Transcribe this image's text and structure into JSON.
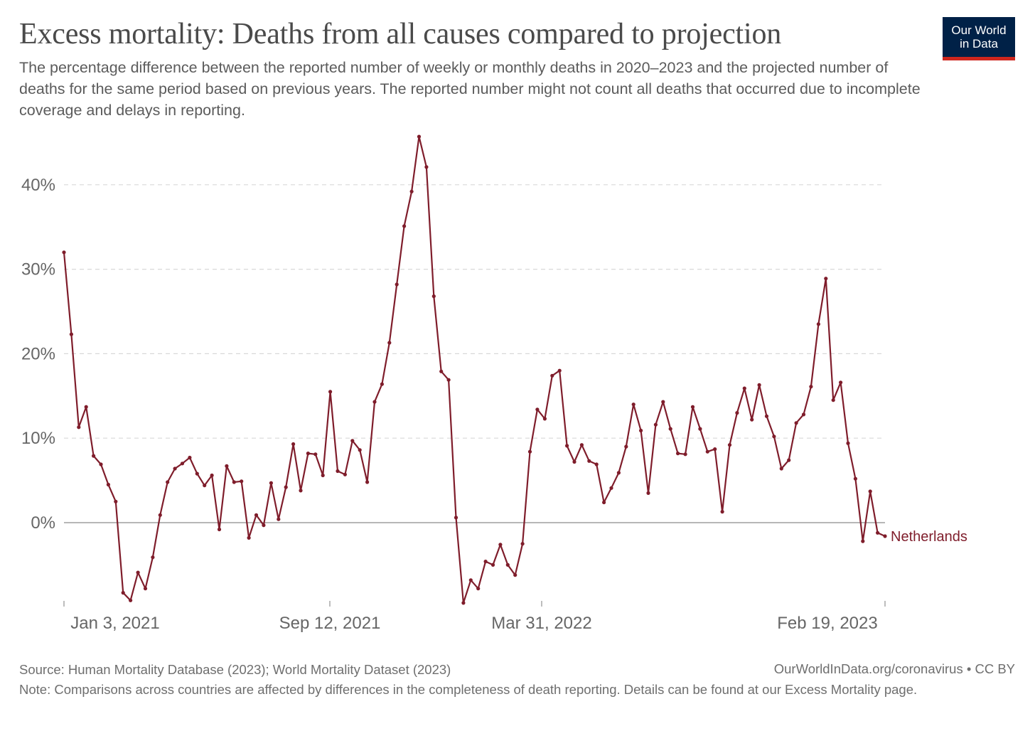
{
  "header": {
    "title": "Excess mortality: Deaths from all causes compared to projection",
    "subtitle": "The percentage difference between the reported number of weekly or monthly deaths in 2020–2023 and the projected number of deaths for the same period based on previous years. The reported number might not count all deaths that occurred due to incomplete coverage and delays in reporting."
  },
  "logo": {
    "line1": "Our World",
    "line2": "in Data",
    "bg_color": "#002147",
    "accent_color": "#ce261e"
  },
  "footer": {
    "source": "Source: Human Mortality Database (2023); World Mortality Dataset (2023)",
    "url": "OurWorldInData.org/coronavirus • CC BY",
    "note": "Note: Comparisons across countries are affected by differences in the completeness of death reporting. Details can be found at our Excess Mortality page."
  },
  "chart_data": {
    "type": "line",
    "title": "Excess mortality: Deaths from all causes compared to projection",
    "x_ticks": [
      "Jan 3, 2021",
      "Sep 12, 2021",
      "Mar 31, 2022",
      "Feb 19, 2023"
    ],
    "y_ticks": [
      "0%",
      "10%",
      "20%",
      "30%",
      "40%"
    ],
    "y_tick_values": [
      0,
      10,
      20,
      30,
      40
    ],
    "ylim": [
      -9.5,
      46
    ],
    "grid": true,
    "legend": "inline-right",
    "series": [
      {
        "name": "Netherlands",
        "color": "#7f1d2b",
        "values": [
          32.0,
          22.3,
          11.3,
          13.7,
          7.9,
          6.9,
          4.5,
          2.5,
          -8.3,
          -9.2,
          -5.9,
          -7.8,
          -4.1,
          0.9,
          4.8,
          6.4,
          7.0,
          7.7,
          5.8,
          4.4,
          5.6,
          -0.8,
          6.7,
          4.8,
          4.9,
          -1.8,
          0.9,
          -0.3,
          4.7,
          0.4,
          4.2,
          9.3,
          3.8,
          8.2,
          8.1,
          5.6,
          15.5,
          6.1,
          5.7,
          9.7,
          8.6,
          4.8,
          14.3,
          16.4,
          21.3,
          28.2,
          35.1,
          39.2,
          45.7,
          42.1,
          26.8,
          17.9,
          16.9,
          0.6,
          -9.5,
          -6.8,
          -7.8,
          -4.6,
          -5.0,
          -2.6,
          -5.0,
          -6.2,
          -2.5,
          8.4,
          13.4,
          12.3,
          17.4,
          18.0,
          9.1,
          7.2,
          9.2,
          7.3,
          6.9,
          2.4,
          4.1,
          5.9,
          9.0,
          14.0,
          10.9,
          3.5,
          11.6,
          14.3,
          11.1,
          8.2,
          8.1,
          13.7,
          11.1,
          8.4,
          8.7,
          1.3,
          9.2,
          13.0,
          15.9,
          12.2,
          16.3,
          12.6,
          10.2,
          6.4,
          7.4,
          11.8,
          12.8,
          16.1,
          23.5,
          28.9,
          14.5,
          16.6,
          9.4,
          5.2,
          -2.2,
          3.7,
          -1.2,
          -1.6
        ]
      }
    ]
  }
}
